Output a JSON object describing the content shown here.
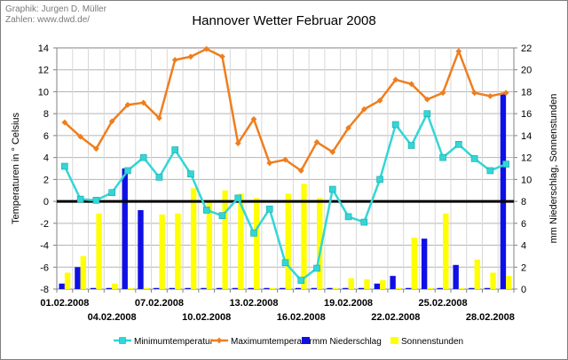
{
  "credit": {
    "line1": "Graphik: Jurgen D. Müller",
    "line2": "Zahlen: www.dwd.de/"
  },
  "chart_data": {
    "type": "line",
    "title": "Hannover Wetter Februar 2008",
    "ylabel_left": "Temperaturen in ° Celsius",
    "ylabel_right": "mm Niederschlag, Sonnenstunden",
    "ylim_left": [
      -8,
      14
    ],
    "yticks_left": [
      -8,
      -6,
      -4,
      -2,
      0,
      2,
      4,
      6,
      8,
      10,
      12,
      14
    ],
    "ylim_right": [
      0,
      22
    ],
    "yticks_right": [
      0,
      2,
      4,
      6,
      8,
      10,
      12,
      14,
      16,
      18,
      20,
      22
    ],
    "grid": true,
    "legend_position": "bottom",
    "x": [
      "01.02.2008",
      "02.02.2008",
      "03.02.2008",
      "04.02.2008",
      "05.02.2008",
      "06.02.2008",
      "07.02.2008",
      "08.02.2008",
      "09.02.2008",
      "10.02.2008",
      "11.02.2008",
      "12.02.2008",
      "13.02.2008",
      "14.02.2008",
      "15.02.2008",
      "16.02.2008",
      "17.02.2008",
      "18.02.2008",
      "19.02.2008",
      "20.02.2008",
      "21.02.2008",
      "22.02.2008",
      "23.02.2008",
      "24.02.2008",
      "25.02.2008",
      "26.02.2008",
      "27.02.2008",
      "28.02.2008",
      "29.02.2008"
    ],
    "x_tick_labels_upper": [
      "01.02.2008",
      "07.02.2008",
      "13.02.2008",
      "19.02.2008",
      "25.02.2008"
    ],
    "x_tick_labels_lower": [
      "04.02.2008",
      "10.02.2008",
      "16.02.2008",
      "22.02.2008",
      "28.02.2008"
    ],
    "series": [
      {
        "name": "Minimumtemperatur",
        "type": "line",
        "axis": "left",
        "color": "#33d6d6",
        "marker": "square",
        "values": [
          3.2,
          0.2,
          0.1,
          0.8,
          2.8,
          4.0,
          2.2,
          4.7,
          2.5,
          -0.8,
          -1.3,
          0.3,
          -2.9,
          -0.7,
          -5.6,
          -7.2,
          -6.1,
          1.1,
          -1.4,
          -1.9,
          2.0,
          7.0,
          5.1,
          8.0,
          4.0,
          5.2,
          3.9,
          2.8,
          3.4
        ]
      },
      {
        "name": "Maximumtemperatur",
        "type": "line",
        "axis": "left",
        "color": "#ef7e1e",
        "marker": "diamond",
        "values": [
          7.2,
          5.9,
          4.8,
          7.3,
          8.8,
          9.0,
          7.6,
          12.9,
          13.2,
          13.9,
          13.2,
          5.3,
          7.5,
          3.5,
          3.8,
          2.8,
          5.4,
          4.5,
          6.7,
          8.4,
          9.2,
          11.1,
          10.7,
          9.3,
          9.9,
          13.7,
          9.9,
          9.6,
          9.9
        ]
      },
      {
        "name": "mm Niederschlag",
        "type": "bar",
        "axis": "right",
        "color": "#1010e6",
        "values": [
          0.5,
          2.0,
          0.1,
          0.1,
          11.0,
          7.2,
          0.1,
          0.1,
          0.1,
          0.1,
          0.1,
          0.1,
          0.1,
          0.1,
          0.1,
          0.1,
          0.1,
          0.1,
          0.1,
          0.1,
          0.5,
          1.2,
          0.1,
          4.6,
          0.1,
          2.2,
          0.1,
          0.1,
          17.8
        ]
      },
      {
        "name": "Sonnenstunden",
        "type": "bar",
        "axis": "right",
        "color": "#ffff00",
        "values": [
          1.5,
          3.0,
          6.9,
          0.5,
          0.1,
          0.1,
          6.8,
          6.9,
          9.2,
          8.1,
          9.0,
          8.7,
          8.3,
          0.1,
          8.7,
          9.6,
          8.3,
          0.1,
          1.0,
          0.9,
          0.8,
          0.1,
          4.7,
          0.1,
          6.9,
          0.1,
          2.7,
          1.5,
          1.2
        ]
      }
    ]
  }
}
